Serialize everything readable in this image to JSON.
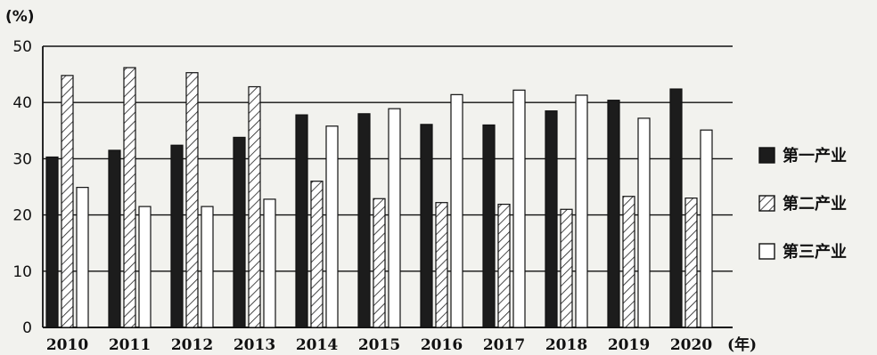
{
  "chart_data": {
    "type": "bar",
    "title": "",
    "ylabel": "(%)",
    "xlabel": "(年)",
    "ylim": [
      0,
      50
    ],
    "yticks": [
      0,
      10,
      20,
      30,
      40,
      50
    ],
    "grid": true,
    "legend_position": "right",
    "categories": [
      "2010",
      "2011",
      "2012",
      "2013",
      "2014",
      "2015",
      "2016",
      "2017",
      "2018",
      "2019",
      "2020"
    ],
    "series": [
      {
        "name": "第一产业",
        "pattern": "solid-black",
        "values": [
          30.3,
          31.5,
          32.4,
          33.8,
          37.8,
          38.0,
          36.1,
          36.0,
          38.5,
          40.4,
          42.4
        ]
      },
      {
        "name": "第二产业",
        "pattern": "diagonal-hatch",
        "values": [
          44.8,
          46.2,
          45.3,
          42.8,
          26.0,
          22.9,
          22.2,
          21.9,
          21.0,
          23.3,
          23.0
        ]
      },
      {
        "name": "第三产业",
        "pattern": "white",
        "values": [
          24.9,
          21.5,
          21.5,
          22.8,
          35.8,
          38.9,
          41.4,
          42.2,
          41.3,
          37.2,
          35.1
        ]
      }
    ]
  },
  "colors": {
    "primary": "#1c1c1c",
    "secondary": "#ffffff",
    "tertiary": "#ffffff",
    "background": "#f2f2ee"
  }
}
